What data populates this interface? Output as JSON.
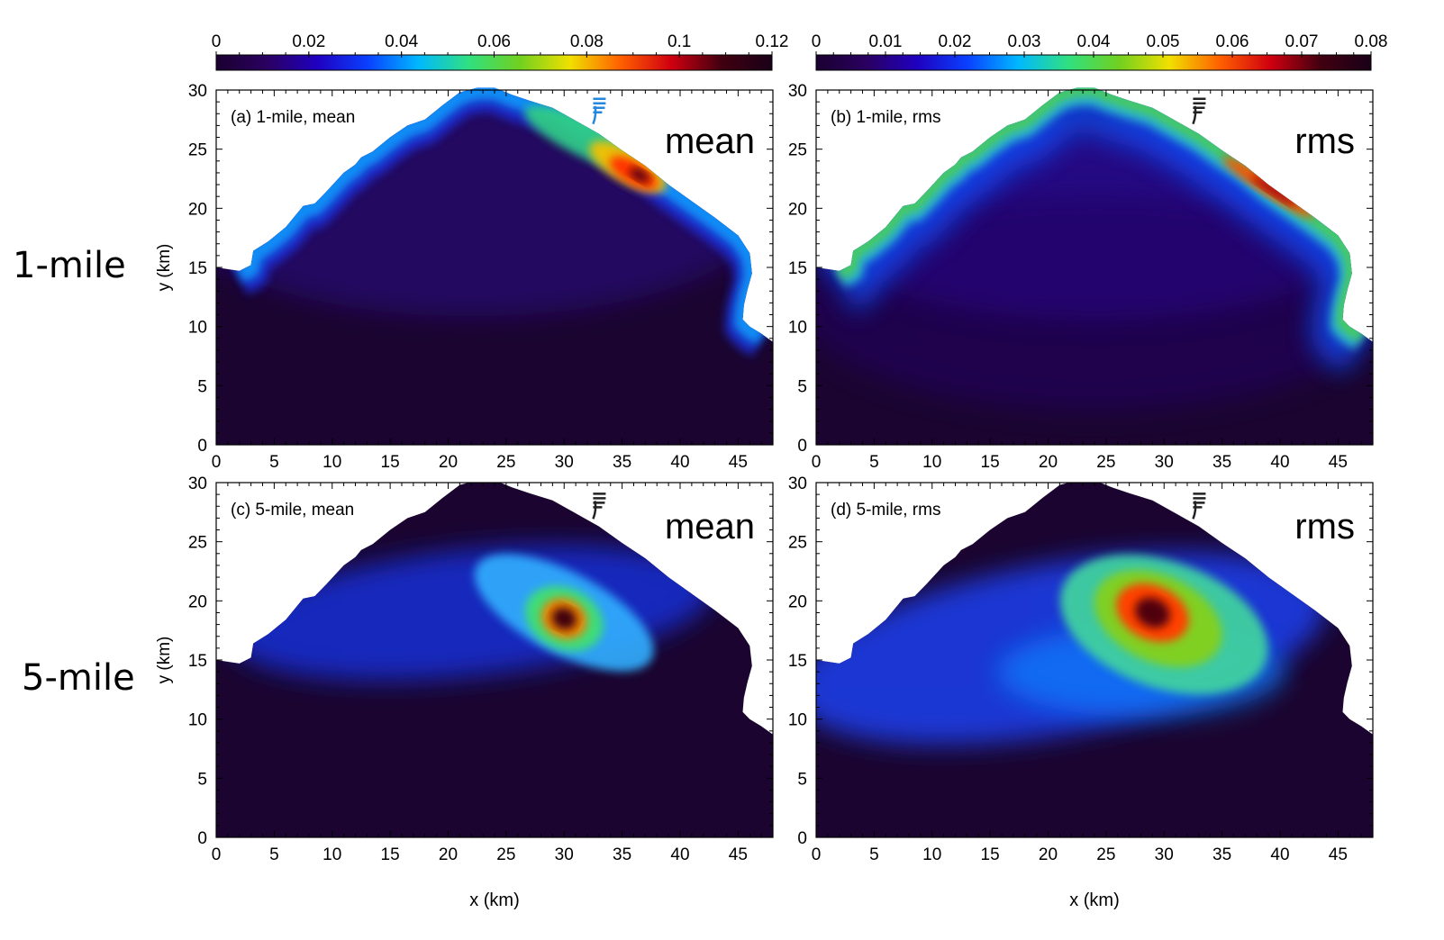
{
  "row_labels": [
    "1-mile",
    "5-mile"
  ],
  "colorbars": [
    {
      "ticks": [
        "0",
        "0.02",
        "0.04",
        "0.06",
        "0.08",
        "0.1",
        "0.12"
      ],
      "range": [
        0,
        0.12
      ]
    },
    {
      "ticks": [
        "0",
        "0.01",
        "0.02",
        "0.03",
        "0.04",
        "0.05",
        "0.06",
        "0.07",
        "0.08"
      ],
      "range": [
        0,
        0.08
      ]
    }
  ],
  "colormap": [
    "#1a0030",
    "#2a0060",
    "#2000c0",
    "#0a40ff",
    "#00b8ff",
    "#30e080",
    "#70d020",
    "#f0e000",
    "#ff6000",
    "#d00010",
    "#400010",
    "#1a0018"
  ],
  "chart_data": [
    {
      "type": "heatmap",
      "panel_label": "(a) 1-mile, mean",
      "overlay_label": "mean",
      "xlabel": "",
      "ylabel": "y (km)",
      "xlim": [
        0,
        48
      ],
      "ylim": [
        0,
        30
      ],
      "xticks": [
        "0",
        "5",
        "10",
        "15",
        "20",
        "25",
        "30",
        "35",
        "40",
        "45"
      ],
      "yticks": [
        "0",
        "5",
        "10",
        "15",
        "20",
        "25",
        "30"
      ],
      "colorbar_range": [
        0,
        0.12
      ],
      "hotspots": [
        {
          "x": 36,
          "y": 23,
          "value": 0.11
        }
      ]
    },
    {
      "type": "heatmap",
      "panel_label": "(b) 1-mile, rms",
      "overlay_label": "rms",
      "xlabel": "",
      "ylabel": "",
      "xlim": [
        0,
        48
      ],
      "ylim": [
        0,
        30
      ],
      "xticks": [
        "0",
        "5",
        "10",
        "15",
        "20",
        "25",
        "30",
        "35",
        "40",
        "45"
      ],
      "yticks": [
        "0",
        "5",
        "10",
        "15",
        "20",
        "25",
        "30"
      ],
      "colorbar_range": [
        0,
        0.08
      ],
      "hotspots": [
        {
          "x": 39,
          "y": 22,
          "value": 0.065
        }
      ]
    },
    {
      "type": "heatmap",
      "panel_label": "(c) 5-mile, mean",
      "overlay_label": "mean",
      "xlabel": "x (km)",
      "ylabel": "y (km)",
      "xlim": [
        0,
        48
      ],
      "ylim": [
        0,
        30
      ],
      "xticks": [
        "0",
        "5",
        "10",
        "15",
        "20",
        "25",
        "30",
        "35",
        "40",
        "45"
      ],
      "yticks": [
        "0",
        "5",
        "10",
        "15",
        "20",
        "25",
        "30"
      ],
      "colorbar_range": [
        0,
        0.12
      ],
      "hotspots": [
        {
          "x": 30,
          "y": 18.5,
          "value": 0.12
        }
      ]
    },
    {
      "type": "heatmap",
      "panel_label": "(d) 5-mile, rms",
      "overlay_label": "rms",
      "xlabel": "x (km)",
      "ylabel": "",
      "xlim": [
        0,
        48
      ],
      "ylim": [
        0,
        30
      ],
      "xticks": [
        "0",
        "5",
        "10",
        "15",
        "20",
        "25",
        "30",
        "35",
        "40",
        "45"
      ],
      "yticks": [
        "0",
        "5",
        "10",
        "15",
        "20",
        "25",
        "30"
      ],
      "colorbar_range": [
        0,
        0.08
      ],
      "hotspots": [
        {
          "x": 29,
          "y": 19,
          "value": 0.08
        }
      ]
    }
  ]
}
